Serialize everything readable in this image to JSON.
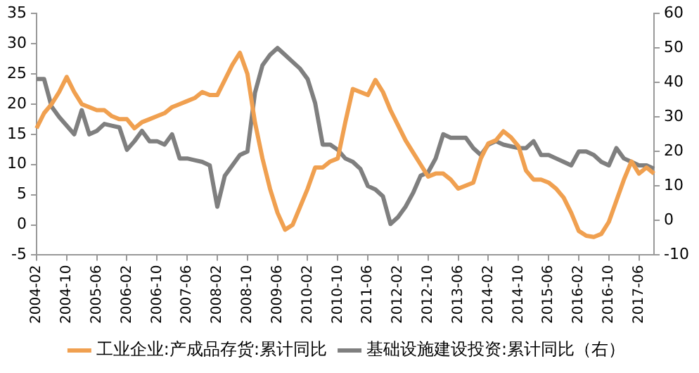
{
  "chart_data": {
    "type": "line",
    "categories": [
      "2004-02",
      null,
      null,
      null,
      "2004-10",
      null,
      null,
      null,
      "2005-06",
      null,
      null,
      null,
      "2006-02",
      null,
      null,
      null,
      "2006-10",
      null,
      null,
      null,
      "2007-06",
      null,
      null,
      null,
      "2008-02",
      null,
      null,
      null,
      "2008-10",
      null,
      null,
      null,
      "2009-06",
      null,
      null,
      null,
      "2010-02",
      null,
      null,
      null,
      "2010-10",
      null,
      null,
      null,
      "2011-06",
      null,
      null,
      null,
      "2012-02",
      null,
      null,
      null,
      "2012-10",
      null,
      null,
      null,
      "2013-06",
      null,
      null,
      null,
      "2014-02",
      null,
      null,
      null,
      "2014-10",
      null,
      null,
      null,
      "2015-06",
      null,
      null,
      null,
      "2016-02",
      null,
      null,
      null,
      "2016-10",
      null,
      null,
      null,
      "2017-06",
      null,
      null
    ],
    "series": [
      {
        "name": "工业企业:产成品存货:累计同比",
        "color": "#f0a050",
        "values": [
          16,
          18.5,
          20,
          22,
          24.5,
          22,
          20,
          19.5,
          19,
          19,
          18,
          17.5,
          17.5,
          16,
          17,
          17.5,
          18,
          18.5,
          19.5,
          20,
          20.5,
          21,
          22,
          21.5,
          21.5,
          24,
          26.5,
          28.5,
          25,
          17,
          11,
          6,
          2,
          -0.8,
          0,
          3,
          6,
          9.5,
          9.5,
          10.5,
          11,
          17,
          22.5,
          22,
          21.5,
          24,
          22,
          19,
          16.5,
          14,
          12,
          10,
          8,
          8.5,
          8.5,
          7.5,
          6,
          6.5,
          7,
          11,
          13.5,
          14,
          15.5,
          14.5,
          13,
          9,
          7.5,
          7.5,
          7,
          6,
          4.5,
          2,
          -1,
          -1.8,
          -2,
          -1.5,
          0.5,
          4,
          7.5,
          10.5,
          8.5,
          9.5,
          8.5
        ]
      },
      {
        "name": "基础设施建设投资:累计同比（右）",
        "color": "#7f7f7f",
        "axis": "y2",
        "values": [
          41,
          41,
          33,
          30,
          27.5,
          25,
          32,
          25,
          26,
          28,
          27.5,
          27,
          20.5,
          23,
          26,
          23,
          23,
          22,
          25,
          18,
          18,
          17.5,
          17,
          16,
          4,
          13,
          16,
          19,
          20,
          37,
          45,
          48,
          50,
          48,
          46,
          44,
          41,
          34,
          22,
          22,
          20.5,
          18,
          17,
          15,
          10,
          9,
          7,
          -1,
          1,
          4,
          8,
          13,
          14,
          18,
          25,
          24,
          24,
          24,
          21,
          19,
          22,
          23,
          22,
          21.5,
          21,
          21,
          23,
          19,
          19,
          18,
          17,
          16,
          20,
          20,
          19,
          17,
          16,
          21,
          18,
          17,
          16,
          16,
          15
        ]
      }
    ],
    "ylim": [
      -5,
      35
    ],
    "yticks": [
      -5,
      0,
      5,
      10,
      15,
      20,
      25,
      30,
      35
    ],
    "y2lim": [
      -10,
      60
    ],
    "y2ticks": [
      -10,
      0,
      10,
      20,
      30,
      40,
      50,
      60
    ],
    "legend": "bottom",
    "grid": false
  }
}
